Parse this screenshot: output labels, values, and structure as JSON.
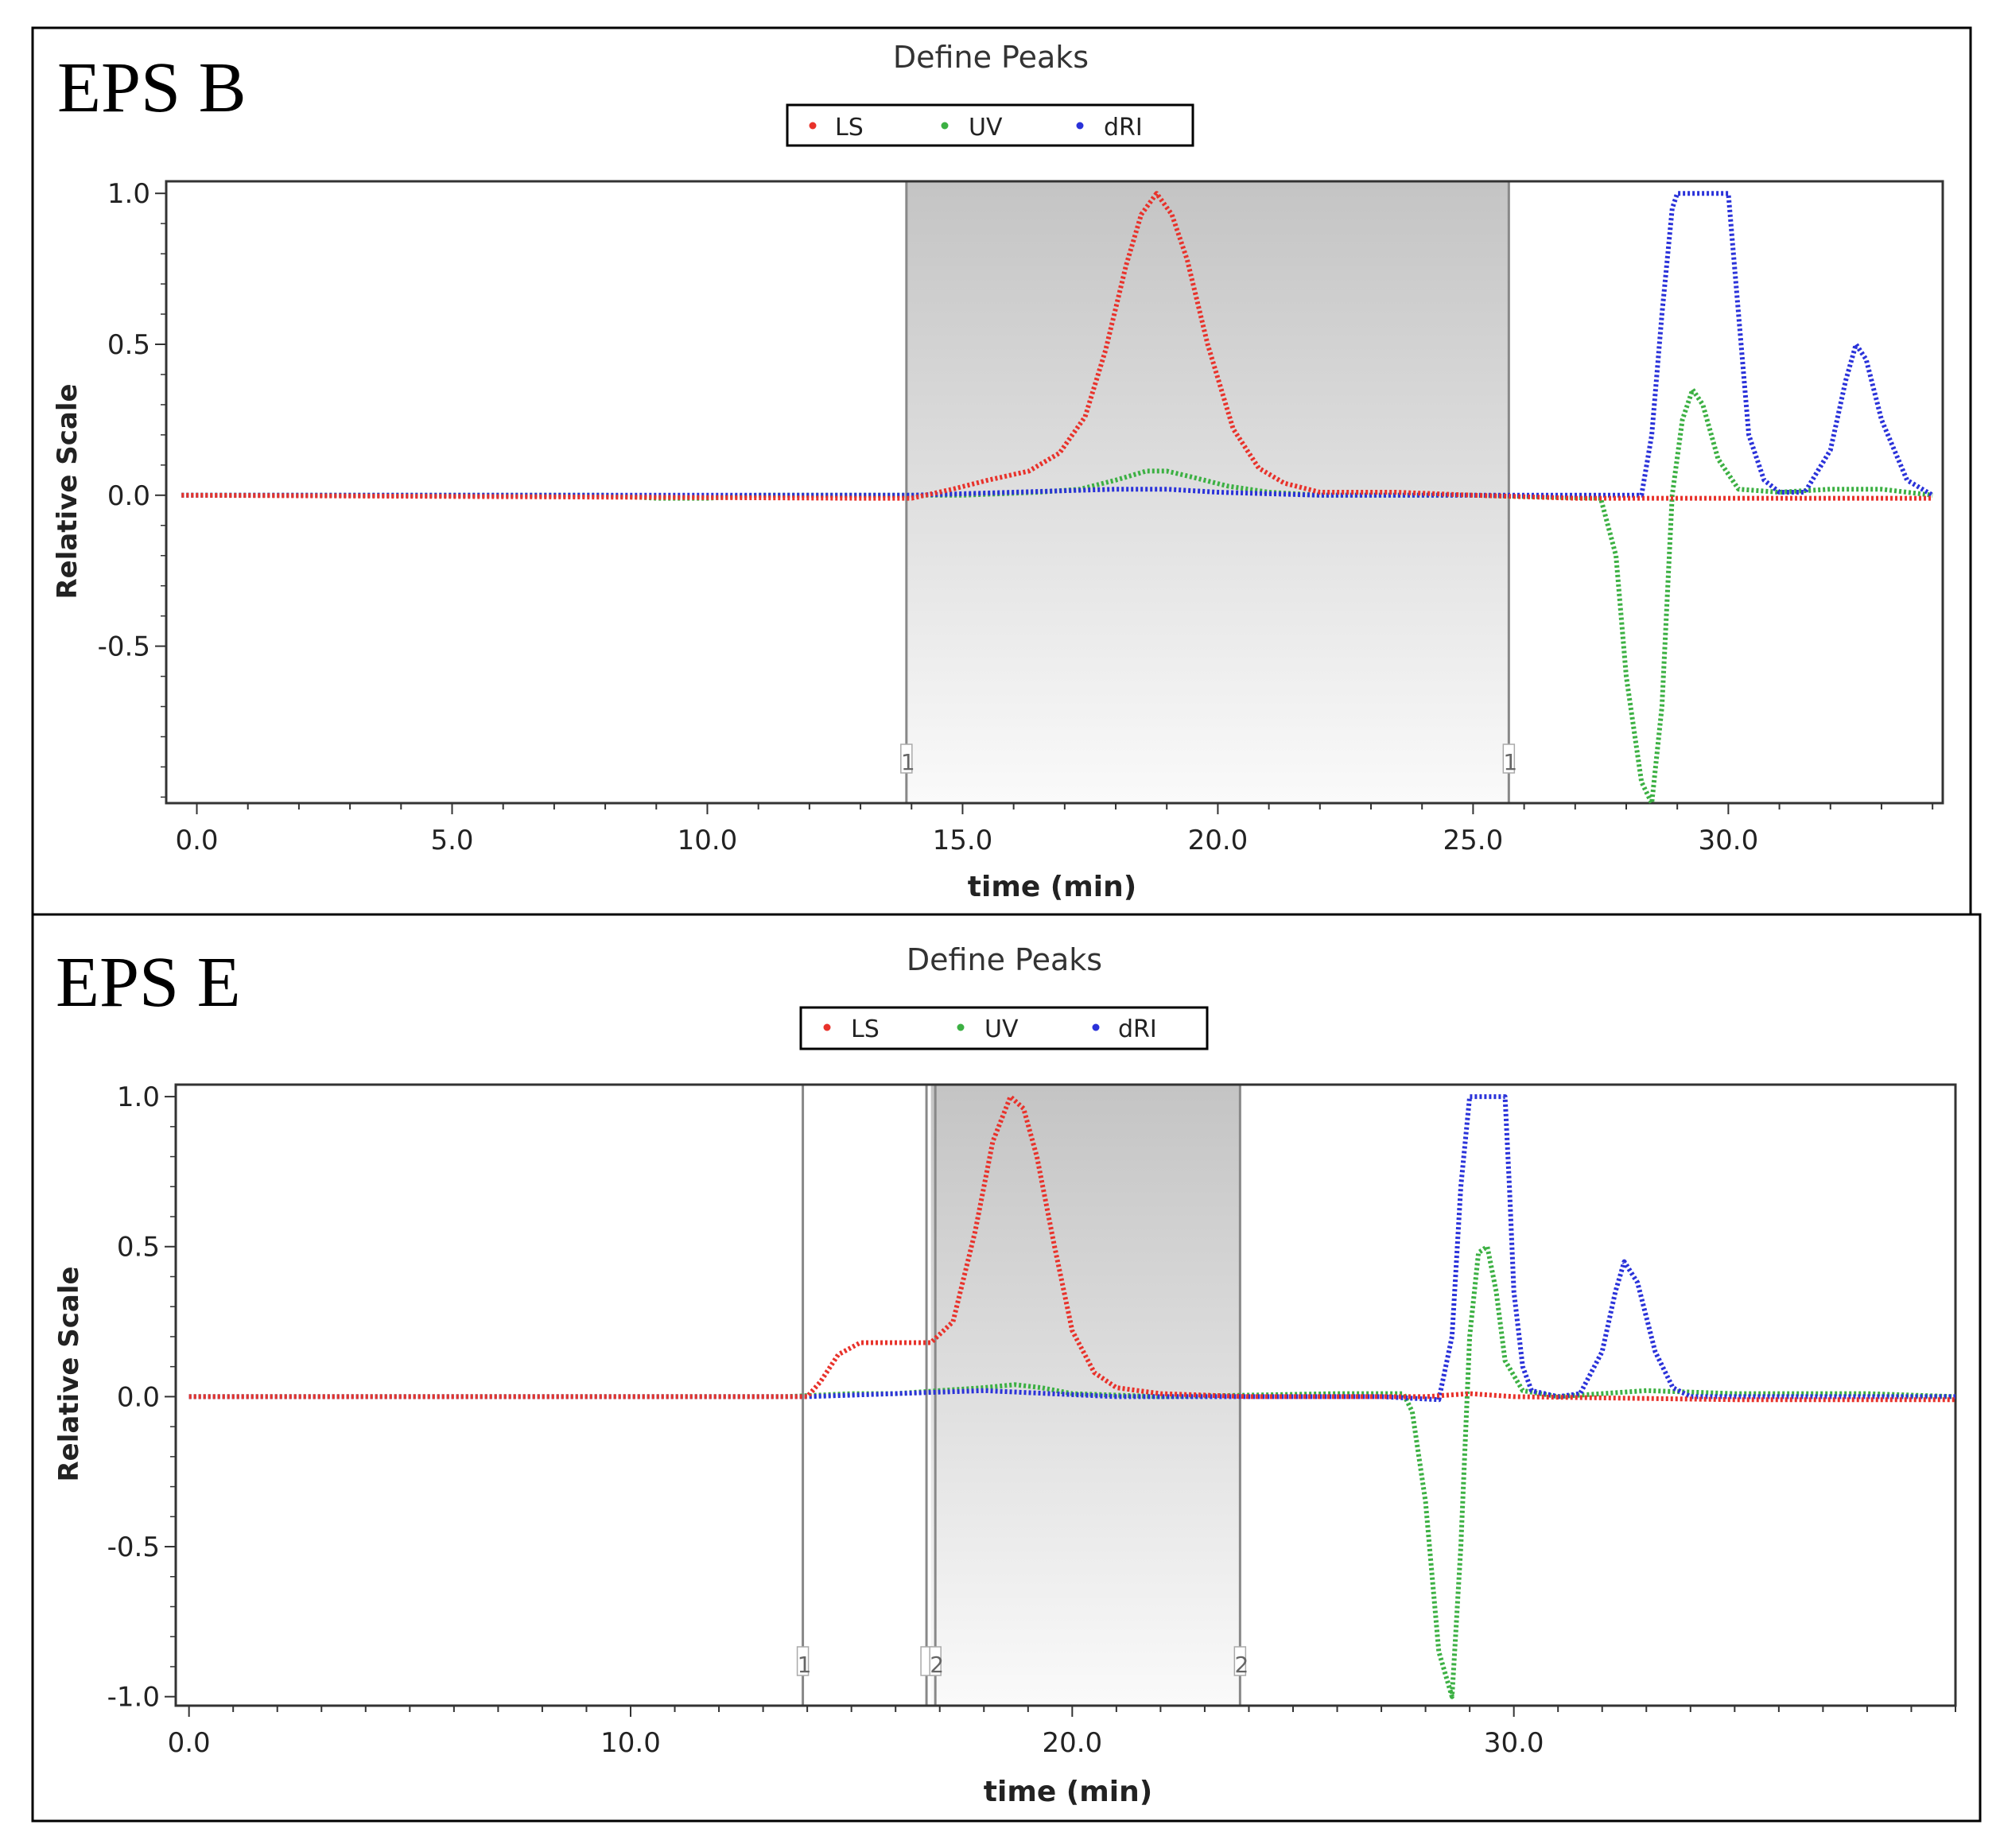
{
  "chart_data": [
    {
      "panel_label": "EPS B",
      "type": "line",
      "title": "Define Peaks",
      "xlabel": "time (min)",
      "ylabel": "Relative Scale",
      "xlim": [
        -0.6,
        34.2
      ],
      "ylim": [
        -1.02,
        1.04
      ],
      "xticks": [
        0,
        5,
        10,
        15,
        20,
        25,
        30
      ],
      "xtick_labels": [
        "0.0",
        "5.0",
        "10.0",
        "15.0",
        "20.0",
        "25.0",
        "30.0"
      ],
      "xminor_step": 1,
      "yticks": [
        1.0,
        0.5,
        0.0,
        -0.5
      ],
      "ytick_labels": [
        "1.0",
        "0.5",
        "0.0",
        "-0.5"
      ],
      "legend": {
        "position": "top-center",
        "entries": [
          {
            "label": "LS",
            "color": "#e8322b"
          },
          {
            "label": "UV",
            "color": "#3cb043"
          },
          {
            "label": "dRI",
            "color": "#2a32d9"
          }
        ]
      },
      "shaded_regions": [
        {
          "from": 13.9,
          "to": 25.7
        }
      ],
      "markers": [
        {
          "x": 13.9,
          "label": "1"
        },
        {
          "x": 25.7,
          "label": "1"
        }
      ],
      "series": [
        {
          "name": "LS",
          "color": "#e8322b",
          "x": [
            -0.3,
            13.0,
            14.0,
            14.8,
            15.5,
            16.3,
            16.9,
            17.4,
            17.8,
            18.2,
            18.5,
            18.8,
            19.1,
            19.4,
            19.8,
            20.3,
            20.8,
            21.3,
            22.0,
            23.5,
            25.0,
            27.0,
            29.0,
            31.0,
            34.0
          ],
          "y": [
            0.0,
            -0.01,
            -0.01,
            0.02,
            0.05,
            0.08,
            0.14,
            0.26,
            0.48,
            0.76,
            0.93,
            1.0,
            0.93,
            0.78,
            0.5,
            0.22,
            0.09,
            0.04,
            0.01,
            0.01,
            0.0,
            -0.01,
            -0.01,
            -0.01,
            -0.01
          ]
        },
        {
          "name": "UV",
          "color": "#3cb043",
          "x": [
            -0.3,
            8.0,
            9.0,
            10.0,
            11.0,
            13.0,
            15.0,
            16.5,
            17.3,
            18.0,
            18.6,
            19.0,
            19.5,
            20.2,
            21.0,
            22.0,
            25.0,
            27.5,
            27.8,
            28.0,
            28.3,
            28.5,
            28.7,
            28.9,
            29.1,
            29.3,
            29.5,
            29.8,
            30.2,
            31.0,
            32.0,
            32.5,
            33.0,
            34.0
          ],
          "y": [
            0.0,
            0.0,
            -0.01,
            -0.01,
            0.0,
            0.0,
            0.0,
            0.01,
            0.02,
            0.05,
            0.08,
            0.08,
            0.06,
            0.03,
            0.01,
            0.0,
            0.0,
            -0.01,
            -0.2,
            -0.6,
            -0.95,
            -1.02,
            -0.7,
            0.0,
            0.25,
            0.35,
            0.3,
            0.12,
            0.02,
            0.01,
            0.02,
            0.02,
            0.02,
            0.0
          ]
        },
        {
          "name": "dRI",
          "color": "#2a32d9",
          "x": [
            -0.3,
            14.0,
            16.0,
            18.0,
            19.0,
            20.0,
            22.0,
            25.0,
            28.3,
            28.5,
            28.7,
            28.9,
            29.0,
            30.0,
            30.2,
            30.4,
            30.7,
            31.0,
            31.5,
            32.0,
            32.3,
            32.5,
            32.7,
            33.0,
            33.5,
            34.0
          ],
          "y": [
            0.0,
            0.0,
            0.01,
            0.02,
            0.02,
            0.01,
            0.0,
            0.0,
            0.0,
            0.2,
            0.6,
            0.95,
            1.0,
            1.0,
            0.6,
            0.2,
            0.05,
            0.01,
            0.01,
            0.15,
            0.38,
            0.5,
            0.45,
            0.25,
            0.05,
            0.0
          ]
        }
      ]
    },
    {
      "panel_label": "EPS E",
      "type": "line",
      "title": "Define Peaks",
      "xlabel": "time (min)",
      "ylabel": "Relative Scale",
      "xlim": [
        -0.3,
        40.0
      ],
      "ylim": [
        -1.03,
        1.04
      ],
      "xticks": [
        0,
        10,
        20,
        30
      ],
      "xtick_labels": [
        "0.0",
        "10.0",
        "20.0",
        "30.0"
      ],
      "xminor_step": 1,
      "yticks": [
        1.0,
        0.5,
        0.0,
        -0.5,
        -1.0
      ],
      "ytick_labels": [
        "1.0",
        "0.5",
        "0.0",
        "-0.5",
        "-1.0"
      ],
      "legend": {
        "position": "top-center",
        "entries": [
          {
            "label": "LS",
            "color": "#e8322b"
          },
          {
            "label": "UV",
            "color": "#3cb043"
          },
          {
            "label": "dRI",
            "color": "#2a32d9"
          }
        ]
      },
      "shaded_regions": [
        {
          "from": 16.8,
          "to": 23.8
        }
      ],
      "markers": [
        {
          "x": 13.9,
          "label": "1"
        },
        {
          "x": 16.7,
          "label": ""
        },
        {
          "x": 16.9,
          "label": "2"
        },
        {
          "x": 23.8,
          "label": "2"
        }
      ],
      "series": [
        {
          "name": "LS",
          "color": "#e8322b",
          "x": [
            0.0,
            13.5,
            14.0,
            14.3,
            14.7,
            15.2,
            15.8,
            16.8,
            17.3,
            17.8,
            18.2,
            18.6,
            18.9,
            19.2,
            19.6,
            20.0,
            20.5,
            21.0,
            22.0,
            24.0,
            28.0,
            29.0,
            30.0,
            35.0,
            38.0,
            40.0
          ],
          "y": [
            0.0,
            0.0,
            0.0,
            0.05,
            0.14,
            0.18,
            0.18,
            0.18,
            0.25,
            0.55,
            0.85,
            1.0,
            0.96,
            0.8,
            0.5,
            0.22,
            0.08,
            0.03,
            0.01,
            0.0,
            0.0,
            0.01,
            0.0,
            -0.01,
            -0.01,
            -0.01
          ]
        },
        {
          "name": "UV",
          "color": "#3cb043",
          "x": [
            0.0,
            13.5,
            15.0,
            16.0,
            17.0,
            18.0,
            18.7,
            19.3,
            20.0,
            22.0,
            26.0,
            27.5,
            27.7,
            28.0,
            28.3,
            28.6,
            28.8,
            29.0,
            29.2,
            29.4,
            29.6,
            29.8,
            30.2,
            31.0,
            32.0,
            33.0,
            35.0,
            38.0,
            40.0
          ],
          "y": [
            0.0,
            0.0,
            0.01,
            0.01,
            0.02,
            0.03,
            0.04,
            0.03,
            0.01,
            0.0,
            0.01,
            0.01,
            -0.05,
            -0.35,
            -0.85,
            -1.0,
            -0.5,
            0.2,
            0.48,
            0.5,
            0.35,
            0.12,
            0.02,
            0.0,
            0.01,
            0.02,
            0.01,
            0.01,
            0.0
          ]
        },
        {
          "name": "dRI",
          "color": "#2a32d9",
          "x": [
            0.0,
            14.0,
            16.0,
            18.0,
            19.5,
            21.0,
            24.0,
            27.0,
            28.3,
            28.6,
            28.8,
            29.0,
            29.1,
            29.8,
            29.9,
            30.0,
            30.2,
            30.4,
            31.0,
            31.5,
            32.0,
            32.3,
            32.5,
            32.8,
            33.2,
            33.6,
            34.0,
            38.0,
            40.0
          ],
          "y": [
            0.0,
            0.0,
            0.01,
            0.02,
            0.01,
            0.0,
            0.0,
            0.0,
            -0.01,
            0.2,
            0.7,
            1.0,
            1.0,
            1.0,
            0.7,
            0.35,
            0.1,
            0.02,
            0.0,
            0.01,
            0.15,
            0.35,
            0.45,
            0.38,
            0.15,
            0.03,
            0.0,
            0.0,
            0.0
          ]
        }
      ]
    }
  ]
}
